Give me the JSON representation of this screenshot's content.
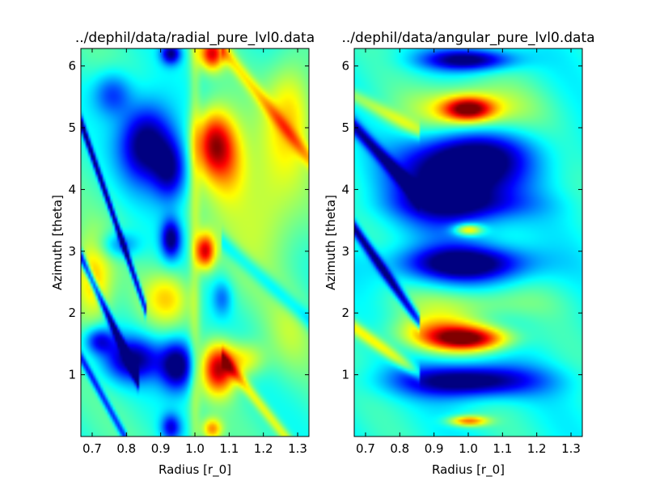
{
  "chart_data": [
    {
      "type": "heatmap",
      "title": "../dephil/data/radial_pure_lvl0.data",
      "xlabel": "Radius [r_0]",
      "ylabel": "Azimuth [theta]",
      "xlim": [
        0.667,
        1.333
      ],
      "ylim": [
        0,
        6.283
      ],
      "xticks": [
        0.7,
        0.8,
        0.9,
        1.0,
        1.1,
        1.2,
        1.3
      ],
      "xtick_labels": [
        "0.7",
        "0.8",
        "0.9",
        "1.0",
        "1.1",
        "1.2",
        "1.3"
      ],
      "yticks": [
        1,
        2,
        3,
        4,
        5,
        6
      ],
      "ytick_labels": [
        "1",
        "2",
        "3",
        "4",
        "5",
        "6"
      ],
      "colormap": "jet",
      "grid": false,
      "features": [
        {
          "r": 0.86,
          "t": 4.75,
          "sr": 0.055,
          "st": 0.45,
          "v": -1.0
        },
        {
          "r": 0.93,
          "t": 4.3,
          "sr": 0.035,
          "st": 0.35,
          "v": -0.7
        },
        {
          "r": 1.055,
          "t": 4.75,
          "sr": 0.04,
          "st": 0.38,
          "v": 1.0
        },
        {
          "r": 1.1,
          "t": 4.4,
          "sr": 0.04,
          "st": 0.45,
          "v": 0.4
        },
        {
          "r": 0.95,
          "t": 1.15,
          "sr": 0.035,
          "st": 0.28,
          "v": -1.0
        },
        {
          "r": 0.82,
          "t": 1.25,
          "sr": 0.06,
          "st": 0.25,
          "v": -0.8
        },
        {
          "r": 1.07,
          "t": 1.1,
          "sr": 0.035,
          "st": 0.28,
          "v": 1.0
        },
        {
          "r": 1.15,
          "t": 1.25,
          "sr": 0.04,
          "st": 0.2,
          "v": 0.4
        },
        {
          "r": 0.93,
          "t": 3.2,
          "sr": 0.02,
          "st": 0.22,
          "v": -0.85
        },
        {
          "r": 1.03,
          "t": 3.0,
          "sr": 0.02,
          "st": 0.2,
          "v": 0.95
        },
        {
          "r": 0.92,
          "t": 2.25,
          "sr": 0.05,
          "st": 0.3,
          "v": 0.45
        },
        {
          "r": 1.08,
          "t": 2.25,
          "sr": 0.02,
          "st": 0.2,
          "v": -0.35
        },
        {
          "r": 1.05,
          "t": 6.2,
          "sr": 0.025,
          "st": 0.18,
          "v": 0.9
        },
        {
          "r": 0.93,
          "t": 6.2,
          "sr": 0.02,
          "st": 0.12,
          "v": -0.8
        },
        {
          "r": 1.05,
          "t": 0.12,
          "sr": 0.02,
          "st": 0.12,
          "v": 0.6
        },
        {
          "r": 0.93,
          "t": 0.15,
          "sr": 0.02,
          "st": 0.15,
          "v": -0.6
        },
        {
          "r": 0.7,
          "t": 2.5,
          "sr": 0.04,
          "st": 0.5,
          "v": 0.55
        },
        {
          "r": 1.2,
          "t": 3.7,
          "sr": 0.08,
          "st": 0.8,
          "v": 0.35
        },
        {
          "r": 1.28,
          "t": 5.3,
          "sr": 0.05,
          "st": 0.6,
          "v": 0.45
        },
        {
          "r": 1.28,
          "t": 1.7,
          "sr": 0.05,
          "st": 0.5,
          "v": 0.2
        },
        {
          "r": 0.76,
          "t": 5.55,
          "sr": 0.04,
          "st": 0.25,
          "v": -0.5
        },
        {
          "r": 0.78,
          "t": 3.1,
          "sr": 0.04,
          "st": 0.15,
          "v": -0.4
        },
        {
          "r": 0.72,
          "t": 1.55,
          "sr": 0.03,
          "st": 0.15,
          "v": -0.6
        }
      ],
      "stripes": [
        {
          "r0": 0.685,
          "t0": 4.8,
          "slope": 16.0,
          "w": 0.09,
          "rmin": 0.667,
          "rmax": 0.86,
          "v": -0.9
        },
        {
          "r0": 0.685,
          "t0": 2.7,
          "slope": 12.0,
          "w": 0.09,
          "rmin": 0.667,
          "rmax": 0.84,
          "v": -0.9
        },
        {
          "r0": 0.7,
          "t0": 0.95,
          "slope": 10.0,
          "w": 0.08,
          "rmin": 0.667,
          "rmax": 0.8,
          "v": -0.6
        },
        {
          "r0": 1.12,
          "t0": 6.0,
          "slope": 7.0,
          "w": 0.12,
          "rmin": 1.08,
          "rmax": 1.333,
          "v": 0.35
        },
        {
          "r0": 1.15,
          "t0": 0.8,
          "slope": 7.0,
          "w": 0.1,
          "rmin": 1.08,
          "rmax": 1.333,
          "v": 0.4
        },
        {
          "r0": 1.15,
          "t0": 2.8,
          "slope": 5.0,
          "w": 0.12,
          "rmin": 1.08,
          "rmax": 1.333,
          "v": -0.3
        }
      ],
      "base_value": -0.15,
      "vline": {
        "r": 1.0,
        "w": 0.012,
        "v": 0.2
      }
    },
    {
      "type": "heatmap",
      "title": "../dephil/data/angular_pure_lvl0.data",
      "xlabel": "Radius [r_0]",
      "ylabel": "Azimuth [theta]",
      "xlim": [
        0.667,
        1.333
      ],
      "ylim": [
        0,
        6.283
      ],
      "xticks": [
        0.7,
        0.8,
        0.9,
        1.0,
        1.1,
        1.2,
        1.3
      ],
      "xtick_labels": [
        "0.7",
        "0.8",
        "0.9",
        "1.0",
        "1.1",
        "1.2",
        "1.3"
      ],
      "yticks": [
        1,
        2,
        3,
        4,
        5,
        6
      ],
      "ytick_labels": [
        "1",
        "2",
        "3",
        "4",
        "5",
        "6"
      ],
      "colormap": "jet",
      "grid": false,
      "features": [
        {
          "r": 1.0,
          "t": 5.3,
          "sr": 0.05,
          "st": 0.13,
          "v": 1.0
        },
        {
          "r": 1.0,
          "t": 5.3,
          "sr": 0.12,
          "st": 0.28,
          "v": 0.5
        },
        {
          "r": 1.0,
          "t": 6.1,
          "sr": 0.09,
          "st": 0.12,
          "v": -0.9
        },
        {
          "r": 0.96,
          "t": 4.05,
          "sr": 0.12,
          "st": 0.45,
          "v": -1.0
        },
        {
          "r": 1.02,
          "t": 4.55,
          "sr": 0.12,
          "st": 0.28,
          "v": -0.6
        },
        {
          "r": 0.99,
          "t": 2.8,
          "sr": 0.13,
          "st": 0.2,
          "v": -1.0
        },
        {
          "r": 1.0,
          "t": 3.35,
          "sr": 0.03,
          "st": 0.07,
          "v": 0.75
        },
        {
          "r": 1.0,
          "t": 1.58,
          "sr": 0.08,
          "st": 0.13,
          "v": 1.0
        },
        {
          "r": 0.92,
          "t": 1.7,
          "sr": 0.1,
          "st": 0.2,
          "v": 0.55
        },
        {
          "r": 1.0,
          "t": 0.9,
          "sr": 0.14,
          "st": 0.18,
          "v": -1.0
        },
        {
          "r": 1.0,
          "t": 0.25,
          "sr": 0.04,
          "st": 0.06,
          "v": 0.75
        },
        {
          "r": 1.0,
          "t": 2.15,
          "sr": 0.15,
          "st": 0.18,
          "v": 0.25
        },
        {
          "r": 1.0,
          "t": 3.75,
          "sr": 0.15,
          "st": 0.15,
          "v": -0.25
        }
      ],
      "stripes": [
        {
          "r0": 0.72,
          "t0": 2.95,
          "slope": 8.0,
          "w": 0.09,
          "rmin": 0.667,
          "rmax": 0.86,
          "v": -0.85
        },
        {
          "r0": 0.72,
          "t0": 4.7,
          "slope": 6.0,
          "w": 0.1,
          "rmin": 0.667,
          "rmax": 0.86,
          "v": -0.7
        },
        {
          "r0": 0.72,
          "t0": 1.55,
          "slope": 4.0,
          "w": 0.09,
          "rmin": 0.667,
          "rmax": 0.86,
          "v": 0.45
        },
        {
          "r0": 0.72,
          "t0": 5.35,
          "slope": 3.0,
          "w": 0.09,
          "rmin": 0.667,
          "rmax": 0.86,
          "v": 0.3
        }
      ],
      "base_value": -0.2,
      "vline": null
    }
  ]
}
